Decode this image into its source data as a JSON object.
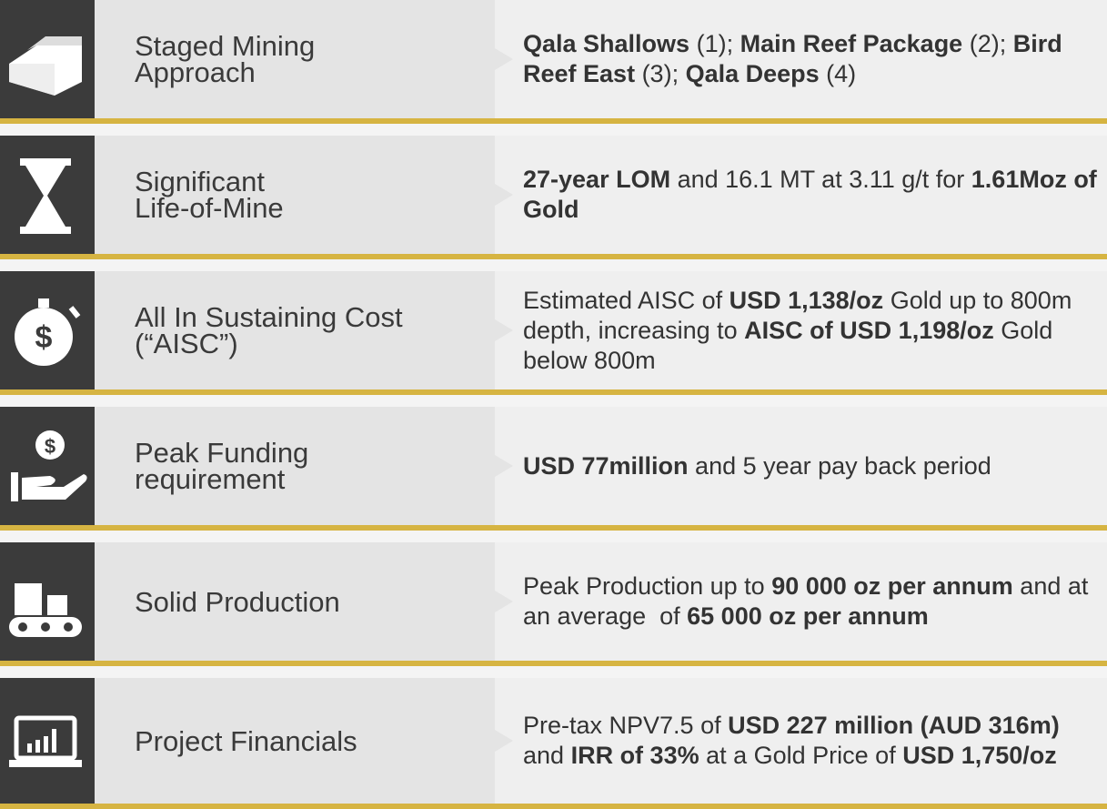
{
  "rows": [
    {
      "label": [
        "Staged Mining",
        "Approach"
      ],
      "description": [
        {
          "text": "Qala Shallows",
          "bold": true
        },
        {
          "text": " (1); "
        },
        {
          "text": "Main Reef Package",
          "bold": true
        },
        {
          "text": " (2); "
        },
        {
          "text": "Bird Reef East",
          "bold": true
        },
        {
          "text": " (3); "
        },
        {
          "text": "Qala Deeps",
          "bold": true
        },
        {
          "text": " (4)"
        }
      ]
    },
    {
      "label": [
        "Significant",
        "Life-of-Mine"
      ],
      "description": [
        {
          "text": "27-year LOM",
          "bold": true
        },
        {
          "text": " and 16.1 MT at 3.11 g/t for "
        },
        {
          "text": "1.61Moz of Gold",
          "bold": true
        }
      ]
    },
    {
      "label": [
        "All In Sustaining Cost",
        "(“AISC”)"
      ],
      "description": [
        {
          "text": "Estimated AISC of "
        },
        {
          "text": "USD 1,138/oz",
          "bold": true
        },
        {
          "text": " Gold up to 800m depth, increasing to "
        },
        {
          "text": "AISC of USD 1,198/oz",
          "bold": true
        },
        {
          "text": " Gold below 800m"
        }
      ]
    },
    {
      "label": [
        "Peak Funding",
        "requirement"
      ],
      "description": [
        {
          "text": "USD 77million",
          "bold": true
        },
        {
          "text": " and 5 year pay back period"
        }
      ]
    },
    {
      "label": [
        "Solid Production"
      ],
      "description": [
        {
          "text": "Peak Production up to "
        },
        {
          "text": "90 000 oz per annum",
          "bold": true
        },
        {
          "text": " and at an average  of "
        },
        {
          "text": "65 000 oz per annum",
          "bold": true
        }
      ]
    },
    {
      "label": [
        "Project Financials"
      ],
      "description": [
        {
          "text": "Pre-tax NPV7.5 of "
        },
        {
          "text": "USD 227 million (AUD 316m)",
          "bold": true
        },
        {
          "text": " and "
        },
        {
          "text": "IRR of 33%",
          "bold": true
        },
        {
          "text": " at a Gold Price of "
        },
        {
          "text": "USD 1,750/oz",
          "bold": true
        }
      ]
    }
  ]
}
